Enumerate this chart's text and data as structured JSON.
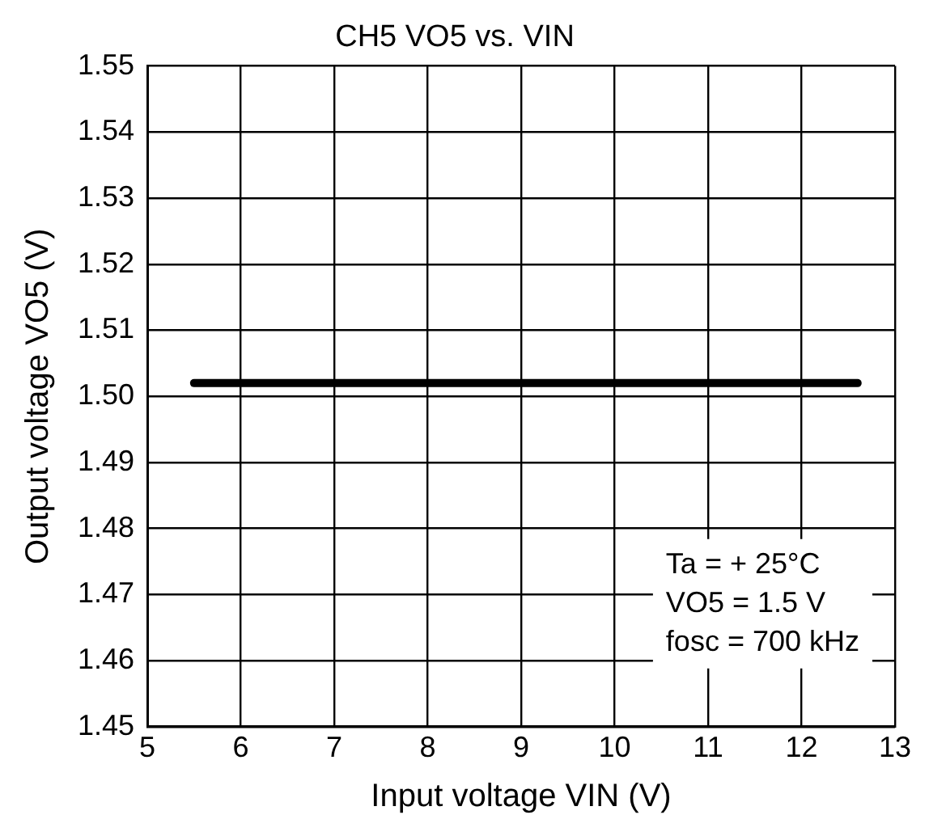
{
  "chart_data": {
    "type": "line",
    "title": "CH5 VO5 vs. VIN",
    "xlabel": "Input voltage VIN (V)",
    "ylabel": "Output voltage VO5 (V)",
    "x": [
      5.5,
      12.6
    ],
    "series": [
      {
        "color": "#000000",
        "values": [
          1.502,
          1.502
        ]
      }
    ],
    "xlim": [
      5,
      13
    ],
    "xticks": [
      5,
      6,
      7,
      8,
      9,
      10,
      11,
      12,
      13
    ],
    "ylim": [
      1.45,
      1.55
    ],
    "yticks": [
      {
        "value": 1.45,
        "label": "1.45"
      },
      {
        "value": 1.46,
        "label": "1.46"
      },
      {
        "value": 1.47,
        "label": "1.47"
      },
      {
        "value": 1.48,
        "label": "1.48"
      },
      {
        "value": 1.49,
        "label": "1.49"
      },
      {
        "value": 1.5,
        "label": "1.50"
      },
      {
        "value": 1.51,
        "label": "1.51"
      },
      {
        "value": 1.52,
        "label": "1.52"
      },
      {
        "value": 1.53,
        "label": "1.53"
      },
      {
        "value": 1.54,
        "label": "1.54"
      },
      {
        "value": 1.55,
        "label": "1.55"
      }
    ],
    "grid": true,
    "legend": false,
    "marker": "none",
    "line_style": "solid",
    "annotations": [
      "Ta = + 25°C",
      "VO5 = 1.5 V",
      "fosc = 700 kHz"
    ]
  }
}
